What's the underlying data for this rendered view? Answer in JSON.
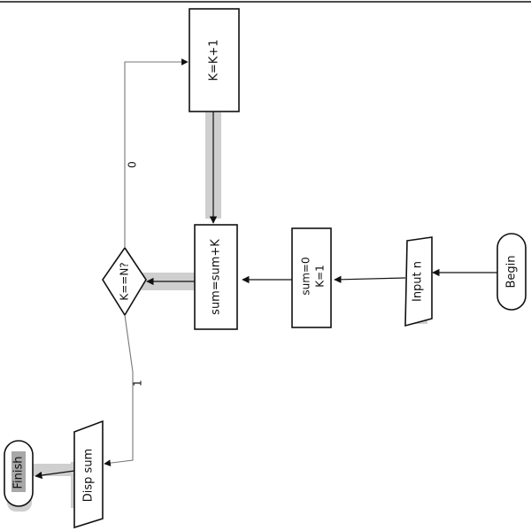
{
  "diagram": {
    "nodes": {
      "begin": {
        "label": "Begin",
        "shape": "terminator"
      },
      "input": {
        "label": "Input n",
        "shape": "parallelogram"
      },
      "init": {
        "lines": [
          "sum=0",
          "K=1"
        ],
        "shape": "process"
      },
      "accumulate": {
        "label": "sum=sum+K",
        "shape": "process"
      },
      "decision": {
        "label": "K==N?",
        "shape": "decision"
      },
      "increment": {
        "label": "K=K+1",
        "shape": "process"
      },
      "output": {
        "label": "Disp sum",
        "shape": "parallelogram"
      },
      "finish": {
        "label": "Finish",
        "shape": "terminator"
      }
    },
    "edges": {
      "no_label": "0",
      "yes_label": "1"
    }
  },
  "colors": {
    "stroke": "#111111",
    "shadow": "#cfcfcf",
    "label_highlight": "#a8a8a8"
  }
}
